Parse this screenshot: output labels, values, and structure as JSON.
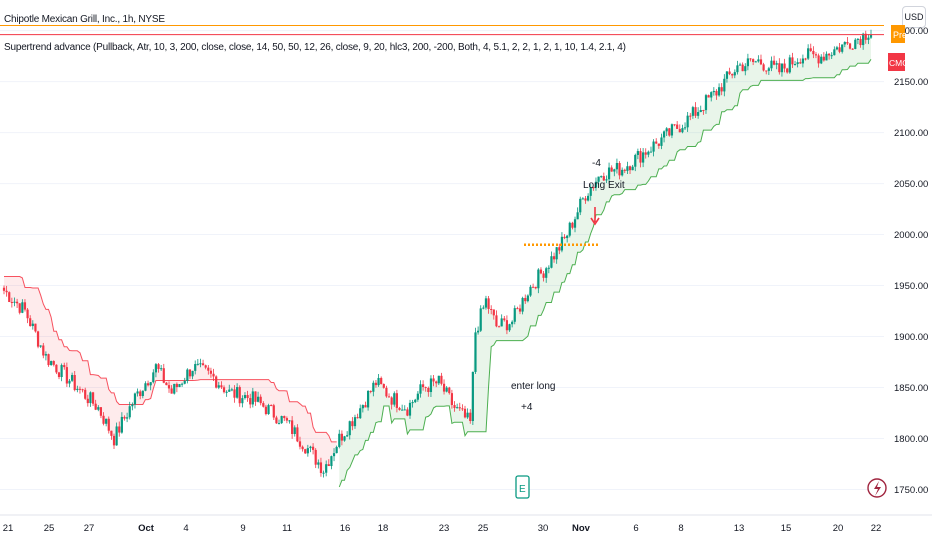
{
  "header": {
    "title": "Chipotle Mexican Grill, Inc., 1h, NYSE",
    "indicator": "Supertrend advance (Pullback, Atr, 10, 3, 200, close, close, 14, 50, 50, 12, 26, close, 9, 20, hlc3, 200, -200, Both, 4, 5.1, 2, 2, 1, 2, 1, 10, 1.4, 2.1, 4)"
  },
  "currency_button": "USD",
  "badges": {
    "pre": "Pre",
    "cmg": "CMG"
  },
  "colors": {
    "up": "#089981",
    "down": "#f23645",
    "support": "#4caf50",
    "resistance": "#f7525f",
    "pre_line": "#ff9800",
    "cmg_line": "#f23645",
    "entry_line": "#ff9800"
  },
  "annotations": {
    "enter_long": "enter long",
    "enter_long_value": "+4",
    "long_exit_value": "-4",
    "long_exit": "Long Exit",
    "earnings_icon": "E"
  },
  "chart_data": {
    "type": "candlestick",
    "title": "Chipotle Mexican Grill, Inc., 1h, NYSE",
    "ylim": [
      1725,
      2230
    ],
    "y_ticks": [
      "1750.00",
      "1800.00",
      "1850.00",
      "1900.00",
      "1950.00",
      "2000.00",
      "2050.00",
      "2100.00",
      "2150.00",
      "2200.00"
    ],
    "y_tick_values": [
      1750,
      1800,
      1850,
      1900,
      1950,
      2000,
      2050,
      2100,
      2150,
      2200
    ],
    "x_ticks": [
      "21",
      "25",
      "27",
      "Oct",
      "4",
      "9",
      "11",
      "16",
      "18",
      "23",
      "25",
      "30",
      "Nov",
      "6",
      "8",
      "13",
      "15",
      "20",
      "22"
    ],
    "anchors": [
      [
        0,
        1945
      ],
      [
        8,
        1925
      ],
      [
        16,
        1880
      ],
      [
        22,
        1865
      ],
      [
        28,
        1850
      ],
      [
        36,
        1830
      ],
      [
        42,
        1800
      ],
      [
        50,
        1840
      ],
      [
        58,
        1870
      ],
      [
        64,
        1845
      ],
      [
        72,
        1870
      ],
      [
        80,
        1860
      ],
      [
        86,
        1845
      ],
      [
        94,
        1840
      ],
      [
        100,
        1830
      ],
      [
        108,
        1815
      ],
      [
        116,
        1790
      ],
      [
        122,
        1770
      ],
      [
        128,
        1800
      ],
      [
        136,
        1830
      ],
      [
        142,
        1855
      ],
      [
        148,
        1840
      ],
      [
        154,
        1830
      ],
      [
        160,
        1850
      ],
      [
        166,
        1855
      ],
      [
        172,
        1830
      ],
      [
        178,
        1815
      ],
      [
        180,
        1905
      ],
      [
        184,
        1935
      ],
      [
        188,
        1910
      ],
      [
        194,
        1915
      ],
      [
        200,
        1945
      ],
      [
        206,
        1965
      ],
      [
        214,
        1995
      ],
      [
        222,
        2040
      ],
      [
        228,
        2060
      ],
      [
        236,
        2065
      ],
      [
        244,
        2080
      ],
      [
        252,
        2095
      ],
      [
        262,
        2115
      ],
      [
        272,
        2140
      ],
      [
        280,
        2165
      ],
      [
        288,
        2170
      ],
      [
        296,
        2160
      ],
      [
        304,
        2175
      ],
      [
        312,
        2175
      ],
      [
        320,
        2185
      ],
      [
        328,
        2195
      ],
      [
        331,
        2202
      ]
    ],
    "n_bars": 332,
    "trend_flip_index": 128,
    "entry_level": 1990,
    "pre_price": 2205,
    "last_price": 2196
  }
}
